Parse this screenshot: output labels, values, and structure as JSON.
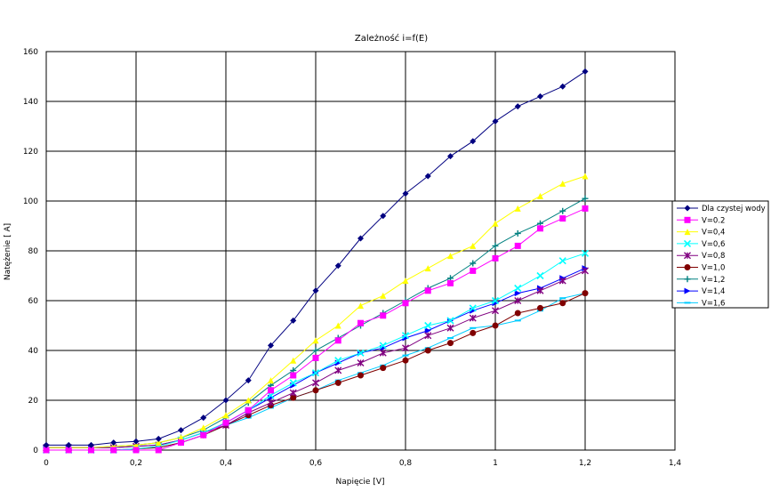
{
  "chart_data": {
    "type": "line",
    "title": "Zależność i=f(E)",
    "xlabel": "Napięcie [V]",
    "ylabel": "Natężenie [  A]",
    "xlim": [
      0,
      1.4
    ],
    "ylim": [
      0,
      160
    ],
    "x_ticks": [
      0,
      0.2,
      0.4,
      0.6,
      0.8,
      1,
      1.2,
      1.4
    ],
    "x_tick_labels": [
      "0",
      "0,2",
      "0,4",
      "0,6",
      "0,8",
      "1",
      "1,2",
      "1,4"
    ],
    "y_ticks": [
      0,
      20,
      40,
      60,
      80,
      100,
      120,
      140,
      160
    ],
    "y_tick_labels": [
      "0",
      "20",
      "40",
      "60",
      "80",
      "100",
      "120",
      "140",
      "160"
    ],
    "grid": true,
    "legend_position": "right",
    "x": [
      0,
      0.05,
      0.1,
      0.15,
      0.2,
      0.25,
      0.3,
      0.35,
      0.4,
      0.45,
      0.5,
      0.55,
      0.6,
      0.65,
      0.7,
      0.75,
      0.8,
      0.85,
      0.9,
      0.95,
      1.0,
      1.05,
      1.1,
      1.15,
      1.2
    ],
    "series": [
      {
        "name": "Dla czystej wody",
        "color": "#000080",
        "marker": "diamond",
        "values": [
          2,
          2,
          2,
          3,
          3.5,
          4.5,
          8,
          13,
          20,
          28,
          42,
          52,
          64,
          74,
          85,
          94,
          103,
          110,
          118,
          124,
          132,
          138,
          142,
          146,
          152
        ]
      },
      {
        "name": "V=0.2",
        "color": "#FF00FF",
        "marker": "square",
        "values": [
          0,
          0,
          0,
          0,
          0,
          0,
          3,
          6,
          11,
          16,
          24,
          30,
          37,
          44,
          51,
          54,
          59,
          64,
          67,
          72,
          77,
          82,
          89,
          93,
          97
        ]
      },
      {
        "name": "V=0,4",
        "color": "#FFFF00",
        "marker": "triangle",
        "values": [
          1,
          1,
          1,
          1.5,
          2,
          3,
          5,
          9,
          14,
          20,
          28,
          36,
          44,
          50,
          58,
          62,
          68,
          73,
          78,
          82,
          91,
          97,
          102,
          107,
          110
        ]
      },
      {
        "name": "V=0,6",
        "color": "#00FFFF",
        "marker": "x",
        "values": [
          0,
          0,
          0,
          0,
          0.5,
          1.5,
          4,
          7,
          11,
          16,
          22,
          27,
          31,
          36,
          39,
          42,
          46,
          50,
          52,
          57,
          60,
          65,
          70,
          76,
          79
        ]
      },
      {
        "name": "V=0,8",
        "color": "#800080",
        "marker": "star",
        "values": [
          1,
          1,
          1,
          1,
          1.5,
          2,
          4,
          7,
          10,
          15,
          19,
          23,
          27,
          32,
          35,
          39,
          41,
          46,
          49,
          53,
          56,
          60,
          64,
          68,
          72
        ]
      },
      {
        "name": "V=1,0",
        "color": "#800000",
        "marker": "circle",
        "values": [
          0,
          0,
          0,
          0,
          0.5,
          1,
          3,
          6,
          10,
          14,
          18,
          21,
          24,
          27,
          30,
          33,
          36,
          40,
          43,
          47,
          50,
          55,
          57,
          59,
          63
        ]
      },
      {
        "name": "V=1,2",
        "color": "#008080",
        "marker": "plus",
        "values": [
          1,
          1,
          1,
          1.5,
          2,
          3,
          5,
          8,
          13,
          19,
          26,
          32,
          40,
          45,
          50,
          55,
          60,
          65,
          69,
          75,
          82,
          87,
          91,
          96,
          101
        ]
      },
      {
        "name": "V=1,4",
        "color": "#0000FF",
        "marker": "triangle-right",
        "values": [
          1,
          1,
          1,
          1,
          1.5,
          2,
          4,
          7,
          11,
          16,
          21,
          26,
          31,
          35,
          39,
          41,
          45,
          48,
          52,
          56,
          59,
          63,
          65,
          69,
          73
        ]
      },
      {
        "name": "V=1,6",
        "color": "#00CCFF",
        "marker": "dash",
        "values": [
          0,
          0,
          0,
          0,
          0.5,
          1,
          3,
          6,
          10,
          13,
          17,
          21,
          24,
          28,
          31,
          34,
          38,
          41,
          45,
          49,
          50,
          52,
          56,
          61,
          63
        ]
      }
    ]
  }
}
